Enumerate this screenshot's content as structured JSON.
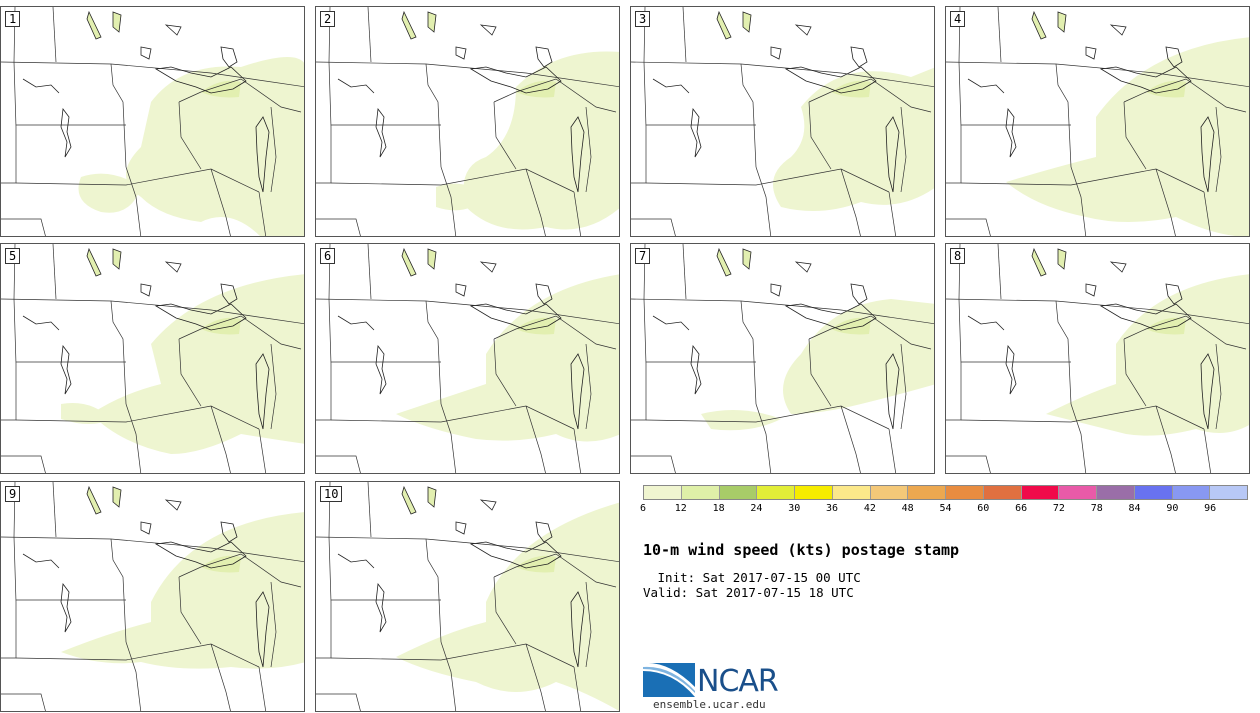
{
  "panels": [
    {
      "label": "1"
    },
    {
      "label": "2"
    },
    {
      "label": "3"
    },
    {
      "label": "4"
    },
    {
      "label": "5"
    },
    {
      "label": "6"
    },
    {
      "label": "7"
    },
    {
      "label": "8"
    },
    {
      "label": "9"
    },
    {
      "label": "10"
    }
  ],
  "colorbar": {
    "ticks": [
      "6",
      "12",
      "18",
      "24",
      "30",
      "36",
      "42",
      "48",
      "54",
      "60",
      "66",
      "72",
      "78",
      "84",
      "90",
      "96"
    ],
    "colors": [
      "#f0f5d0",
      "#dff0a8",
      "#a8cc68",
      "#e2ee38",
      "#f6ec00",
      "#fbe88a",
      "#f4c878",
      "#eca850",
      "#e88c40",
      "#e07040",
      "#f00a4a",
      "#e85aa8",
      "#9a6ea8",
      "#6872f0",
      "#8898f2",
      "#b8c8f6"
    ]
  },
  "title": "10-m wind speed (kts) postage stamp",
  "init": " Init: Sat 2017-07-15 00 UTC",
  "valid": "Valid: Sat 2017-07-15 18 UTC",
  "logo_text": "NCAR",
  "url": "ensemble.ucar.edu",
  "map_colors": {
    "light": "#eef5d0",
    "mid": "#e2efb0",
    "dark": "#b4d278",
    "border": "#333333"
  }
}
